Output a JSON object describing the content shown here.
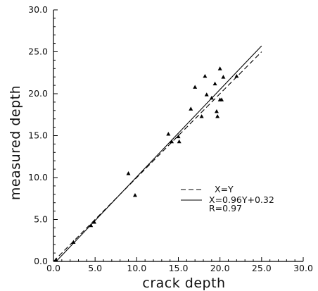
{
  "chart_data": {
    "type": "scatter",
    "title": "",
    "xlabel": "crack depth",
    "ylabel": "measured depth",
    "xlim": [
      0,
      30
    ],
    "ylim": [
      0,
      30
    ],
    "x_ticks": [
      "0.0",
      "5.0",
      "10.0",
      "15.0",
      "20.0",
      "25.0",
      "30.0"
    ],
    "y_ticks": [
      "0.0",
      "5.0",
      "10.0",
      "15.0",
      "20.0",
      "25.0",
      "30.0"
    ],
    "grid": false,
    "legend_position": "right",
    "series": [
      {
        "kind": "points",
        "marker": "triangle",
        "points": [
          [
            0.3,
            0.2
          ],
          [
            2.4,
            2.3
          ],
          [
            4.5,
            4.3
          ],
          [
            4.9,
            4.7
          ],
          [
            9.0,
            10.5
          ],
          [
            9.8,
            7.9
          ],
          [
            13.8,
            15.2
          ],
          [
            14.2,
            14.3
          ],
          [
            15.0,
            14.9
          ],
          [
            15.1,
            14.3
          ],
          [
            16.5,
            18.2
          ],
          [
            17.0,
            20.8
          ],
          [
            17.8,
            17.3
          ],
          [
            18.2,
            22.1
          ],
          [
            18.4,
            19.9
          ],
          [
            19.0,
            19.5
          ],
          [
            19.4,
            21.2
          ],
          [
            19.6,
            17.9
          ],
          [
            19.7,
            17.3
          ],
          [
            20.0,
            23.0
          ],
          [
            20.0,
            19.3
          ],
          [
            20.2,
            19.3
          ],
          [
            20.4,
            22.0
          ],
          [
            22.0,
            22.1
          ]
        ]
      },
      {
        "name": "X=Y",
        "kind": "line",
        "style": "dashed",
        "x": [
          0,
          25
        ],
        "y": [
          0,
          25
        ]
      },
      {
        "name": "X=0.96Y+0.32",
        "kind": "line",
        "style": "solid",
        "x": [
          0,
          25
        ],
        "y": [
          -0.333,
          25.708
        ]
      }
    ],
    "annotations": [
      "R=0.97"
    ]
  }
}
